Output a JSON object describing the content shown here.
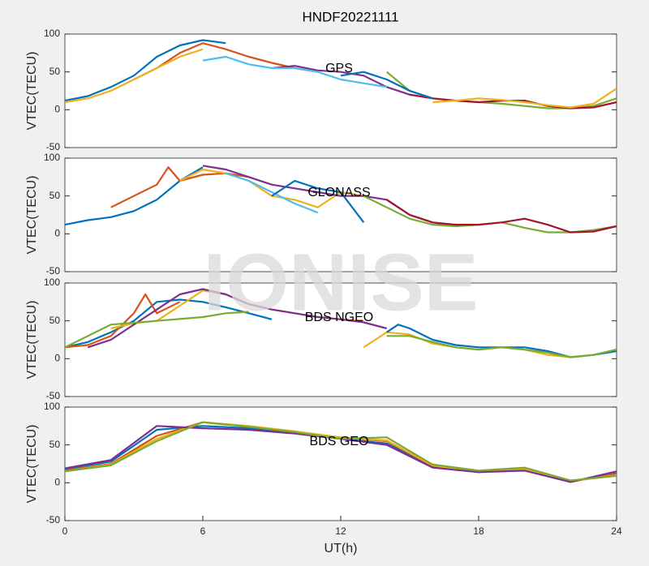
{
  "title": "HNDF20221111",
  "watermark": "IONISE",
  "chart_data": [
    {
      "type": "line",
      "annotation": "GPS",
      "ylabel": "VTEC(TECU)",
      "xlim": [
        0,
        24
      ],
      "ylim": [
        -50,
        100
      ],
      "yticks": [
        -50,
        0,
        50,
        100
      ],
      "series": [
        {
          "color": "#0072BD",
          "x": [
            0,
            1,
            2,
            3,
            4,
            5,
            6,
            7
          ],
          "values": [
            12,
            18,
            30,
            45,
            70,
            85,
            92,
            88
          ]
        },
        {
          "color": "#D95319",
          "x": [
            3,
            4,
            5,
            6,
            7,
            8,
            9,
            10,
            11
          ],
          "values": [
            40,
            55,
            75,
            88,
            80,
            70,
            62,
            55,
            50
          ]
        },
        {
          "color": "#EDB120",
          "x": [
            0,
            1,
            2,
            3,
            4,
            5,
            6
          ],
          "values": [
            10,
            15,
            25,
            40,
            55,
            70,
            80
          ]
        },
        {
          "color": "#7E2F8E",
          "x": [
            9,
            10,
            11,
            12,
            13,
            14,
            15,
            16
          ],
          "values": [
            55,
            58,
            52,
            50,
            45,
            30,
            20,
            15
          ]
        },
        {
          "color": "#77AC30",
          "x": [
            14,
            15,
            16,
            17,
            18,
            19,
            20,
            21,
            22,
            23,
            24
          ],
          "values": [
            50,
            25,
            15,
            12,
            10,
            8,
            5,
            2,
            2,
            5,
            15
          ]
        },
        {
          "color": "#4DBEEE",
          "x": [
            6,
            7,
            8,
            9,
            10,
            11,
            12,
            13,
            14
          ],
          "values": [
            65,
            70,
            60,
            55,
            55,
            50,
            40,
            35,
            30
          ]
        },
        {
          "color": "#A2142F",
          "x": [
            15,
            16,
            17,
            18,
            19,
            20,
            21,
            22,
            23,
            24
          ],
          "values": [
            20,
            15,
            12,
            10,
            12,
            12,
            5,
            2,
            3,
            10
          ]
        },
        {
          "color": "#0072BD",
          "x": [
            12,
            13,
            14,
            15,
            16
          ],
          "values": [
            45,
            50,
            40,
            25,
            15
          ]
        },
        {
          "color": "#EDB120",
          "x": [
            16,
            17,
            18,
            19,
            20,
            21,
            22,
            23,
            24
          ],
          "values": [
            10,
            12,
            15,
            13,
            10,
            6,
            3,
            8,
            28
          ]
        }
      ]
    },
    {
      "type": "line",
      "annotation": "GLONASS",
      "ylabel": "VTEC(TECU)",
      "xlim": [
        0,
        24
      ],
      "ylim": [
        -50,
        100
      ],
      "yticks": [
        -50,
        0,
        50,
        100
      ],
      "series": [
        {
          "color": "#0072BD",
          "x": [
            0,
            1,
            2,
            3,
            4,
            5,
            6
          ],
          "values": [
            12,
            18,
            22,
            30,
            45,
            70,
            88
          ]
        },
        {
          "color": "#D95319",
          "x": [
            2,
            3,
            4,
            4.5,
            5,
            6,
            7,
            8
          ],
          "values": [
            35,
            50,
            65,
            88,
            70,
            78,
            80,
            75
          ]
        },
        {
          "color": "#EDB120",
          "x": [
            5,
            6,
            7,
            8,
            9,
            10,
            11,
            12,
            13
          ],
          "values": [
            70,
            85,
            80,
            70,
            50,
            45,
            35,
            55,
            50
          ]
        },
        {
          "color": "#7E2F8E",
          "x": [
            6,
            7,
            8,
            9,
            10,
            11,
            12,
            13,
            14,
            15,
            16,
            17
          ],
          "values": [
            90,
            85,
            75,
            65,
            60,
            55,
            50,
            50,
            45,
            25,
            15,
            10
          ]
        },
        {
          "color": "#77AC30",
          "x": [
            13,
            14,
            15,
            16,
            17,
            18,
            19,
            20,
            21,
            22,
            23,
            24
          ],
          "values": [
            50,
            35,
            20,
            12,
            10,
            12,
            15,
            8,
            2,
            2,
            5,
            10
          ]
        },
        {
          "color": "#4DBEEE",
          "x": [
            7,
            8,
            9,
            10,
            11
          ],
          "values": [
            80,
            70,
            55,
            40,
            28
          ]
        },
        {
          "color": "#A2142F",
          "x": [
            14,
            15,
            16,
            17,
            18,
            19,
            20,
            21,
            22,
            23,
            24
          ],
          "values": [
            45,
            25,
            15,
            12,
            12,
            15,
            20,
            12,
            2,
            3,
            10
          ]
        },
        {
          "color": "#0072BD",
          "x": [
            9,
            10,
            11,
            12,
            13
          ],
          "values": [
            50,
            70,
            60,
            55,
            15
          ]
        }
      ]
    },
    {
      "type": "line",
      "annotation": "BDS NGEO",
      "ylabel": "VTEC(TECU)",
      "xlim": [
        0,
        24
      ],
      "ylim": [
        -50,
        100
      ],
      "yticks": [
        -50,
        0,
        50,
        100
      ],
      "series": [
        {
          "color": "#0072BD",
          "x": [
            0,
            1,
            2,
            3,
            4,
            5,
            6,
            7,
            8,
            9
          ],
          "values": [
            15,
            22,
            35,
            50,
            75,
            78,
            75,
            68,
            60,
            52
          ]
        },
        {
          "color": "#D95319",
          "x": [
            0,
            1,
            2,
            3,
            3.5,
            4,
            5
          ],
          "values": [
            15,
            18,
            30,
            60,
            85,
            60,
            75
          ]
        },
        {
          "color": "#EDB120",
          "x": [
            2,
            3,
            4,
            5,
            6,
            7,
            8,
            9,
            10,
            11,
            12,
            13
          ],
          "values": [
            40,
            47,
            50,
            70,
            90,
            85,
            72,
            65,
            60,
            55,
            52,
            50
          ]
        },
        {
          "color": "#7E2F8E",
          "x": [
            1,
            2,
            3,
            4,
            5,
            6,
            7,
            8,
            9,
            10,
            11,
            12,
            13,
            14
          ],
          "values": [
            15,
            25,
            45,
            65,
            85,
            92,
            85,
            72,
            65,
            60,
            55,
            52,
            48,
            40
          ]
        },
        {
          "color": "#77AC30",
          "x": [
            0,
            2,
            4,
            6,
            7,
            8
          ],
          "values": [
            15,
            45,
            50,
            55,
            60,
            62
          ]
        },
        {
          "color": "#EDB120",
          "x": [
            13,
            13.5,
            14,
            15,
            16,
            17,
            18,
            19,
            20,
            21,
            22,
            23,
            24
          ],
          "values": [
            15,
            25,
            35,
            32,
            20,
            15,
            12,
            15,
            12,
            5,
            2,
            5,
            12
          ]
        },
        {
          "color": "#0072BD",
          "x": [
            14,
            14.5,
            15,
            16,
            17,
            18,
            19,
            20,
            21,
            22,
            23,
            24
          ],
          "values": [
            35,
            45,
            40,
            25,
            18,
            15,
            15,
            15,
            10,
            2,
            5,
            10
          ]
        },
        {
          "color": "#77AC30",
          "x": [
            14,
            15,
            16,
            17,
            18,
            19,
            20,
            21,
            22,
            23,
            24
          ],
          "values": [
            30,
            30,
            22,
            15,
            12,
            15,
            12,
            8,
            2,
            5,
            12
          ]
        }
      ]
    },
    {
      "type": "line",
      "annotation": "BDS GEO",
      "ylabel": "VTEC(TECU)",
      "xlabel": "UT(h)",
      "xlim": [
        0,
        24
      ],
      "ylim": [
        -50,
        100
      ],
      "yticks": [
        -50,
        0,
        50,
        100
      ],
      "xticks": [
        0,
        6,
        12,
        18,
        24
      ],
      "series": [
        {
          "color": "#0072BD",
          "x": [
            0,
            2,
            4,
            6,
            8,
            10,
            12,
            14,
            16,
            18,
            20,
            22,
            24
          ],
          "values": [
            18,
            28,
            70,
            75,
            72,
            66,
            58,
            52,
            22,
            15,
            18,
            2,
            12
          ]
        },
        {
          "color": "#D95319",
          "x": [
            0,
            2,
            4,
            6,
            8,
            10,
            12,
            14,
            16,
            18,
            20,
            22,
            24
          ],
          "values": [
            16,
            25,
            62,
            80,
            74,
            67,
            60,
            55,
            22,
            15,
            17,
            1,
            13
          ]
        },
        {
          "color": "#EDB120",
          "x": [
            0,
            2,
            4,
            6,
            8,
            10,
            12,
            14,
            16,
            18,
            20,
            22,
            24
          ],
          "values": [
            15,
            24,
            58,
            80,
            75,
            68,
            60,
            56,
            23,
            14,
            18,
            2,
            10
          ]
        },
        {
          "color": "#7E2F8E",
          "x": [
            0,
            2,
            4,
            6,
            8,
            10,
            12,
            14,
            16,
            18,
            20,
            22,
            24
          ],
          "values": [
            19,
            30,
            75,
            72,
            70,
            65,
            58,
            50,
            20,
            14,
            16,
            1,
            15
          ]
        },
        {
          "color": "#77AC30",
          "x": [
            0,
            2,
            4,
            6,
            8,
            10,
            12,
            14,
            16,
            18,
            20,
            22,
            24
          ],
          "values": [
            15,
            23,
            55,
            80,
            74,
            67,
            58,
            60,
            24,
            16,
            20,
            3,
            9
          ]
        }
      ]
    }
  ]
}
